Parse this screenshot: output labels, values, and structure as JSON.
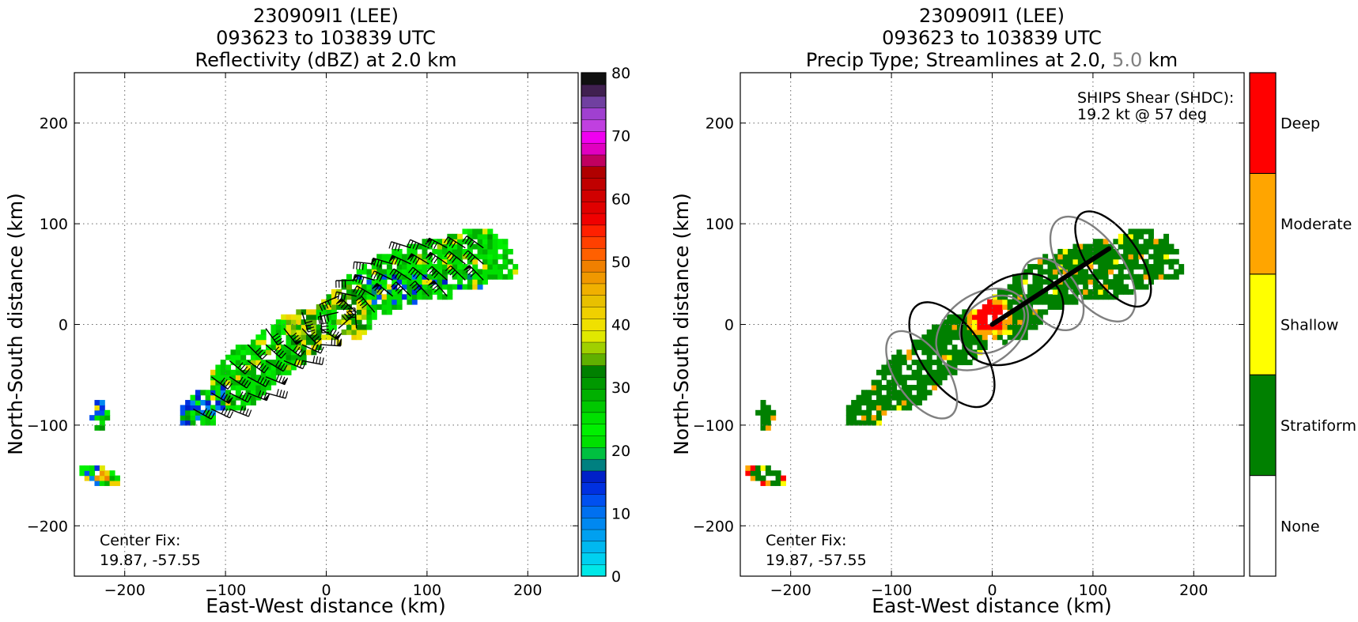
{
  "chart_data": [
    {
      "type": "heatmap",
      "title_lines": [
        "230909I1 (LEE)",
        "093623 to 103839 UTC",
        "Reflectivity (dBZ) at 2.0 km"
      ],
      "xlabel": "East-West distance (km)",
      "ylabel": "North-South distance (km)",
      "xlim": [
        -250,
        250
      ],
      "ylim": [
        -250,
        250
      ],
      "xticks": [
        -200,
        -100,
        0,
        100,
        200
      ],
      "yticks": [
        -200,
        -100,
        0,
        100,
        200
      ],
      "tick_labels": [
        "−200",
        "−100",
        "0",
        "100",
        "200"
      ],
      "grid": true,
      "annotation": [
        "Center Fix:",
        "19.87, -57.55"
      ],
      "colorbar": {
        "min": 0,
        "max": 80,
        "ticks": [
          0,
          10,
          20,
          30,
          40,
          50,
          60,
          70,
          80
        ],
        "tick_labels": [
          "0",
          "10",
          "20",
          "30",
          "40",
          "50",
          "60",
          "70",
          "80"
        ],
        "colors": [
          "#00e8e8",
          "#00d0f0",
          "#00b8f0",
          "#00a0f0",
          "#0088f0",
          "#0070f0",
          "#0050f0",
          "#0030e0",
          "#0020c8",
          "#008080",
          "#00c040",
          "#00e000",
          "#00f000",
          "#00e000",
          "#00c800",
          "#00b000",
          "#009800",
          "#008000",
          "#60b000",
          "#a0d000",
          "#e0e800",
          "#f0e000",
          "#f0d000",
          "#e8c000",
          "#f0b000",
          "#f09800",
          "#f08000",
          "#ff6000",
          "#ff4000",
          "#ff2000",
          "#f00000",
          "#e00000",
          "#d00000",
          "#c00000",
          "#b00000",
          "#c00060",
          "#e000c0",
          "#f000f0",
          "#c040e0",
          "#a040d0",
          "#7040a0",
          "#402050",
          "#101010"
        ]
      },
      "wind_barbs": true
    },
    {
      "type": "heatmap",
      "title_lines": [
        "230909I1 (LEE)",
        "093623 to 103839 UTC"
      ],
      "title_line3_parts": [
        "Precip Type; Streamlines at 2.0, ",
        "5.0",
        " km"
      ],
      "xlabel": "East-West distance (km)",
      "ylabel": "North-South distance (km)",
      "xlim": [
        -250,
        250
      ],
      "ylim": [
        -250,
        250
      ],
      "xticks": [
        -200,
        -100,
        0,
        100,
        200
      ],
      "yticks": [
        -200,
        -100,
        0,
        100,
        200
      ],
      "tick_labels": [
        "−200",
        "−100",
        "0",
        "100",
        "200"
      ],
      "grid": true,
      "annotation": [
        "Center Fix:",
        "19.87, -57.55"
      ],
      "shear_annotation": [
        "SHIPS Shear (SHDC):",
        "19.2 kt @ 57 deg"
      ],
      "shear": {
        "magnitude_kt": 19.2,
        "direction_deg": 57
      },
      "categories": [
        "None",
        "Stratiform",
        "Shallow",
        "Moderate",
        "Deep"
      ],
      "category_colors": [
        "#ffffff",
        "#008000",
        "#ffff00",
        "#ffa500",
        "#ff0000"
      ],
      "streamline_colors": {
        "2.0": "#000000",
        "5.0": "#808080"
      }
    }
  ]
}
